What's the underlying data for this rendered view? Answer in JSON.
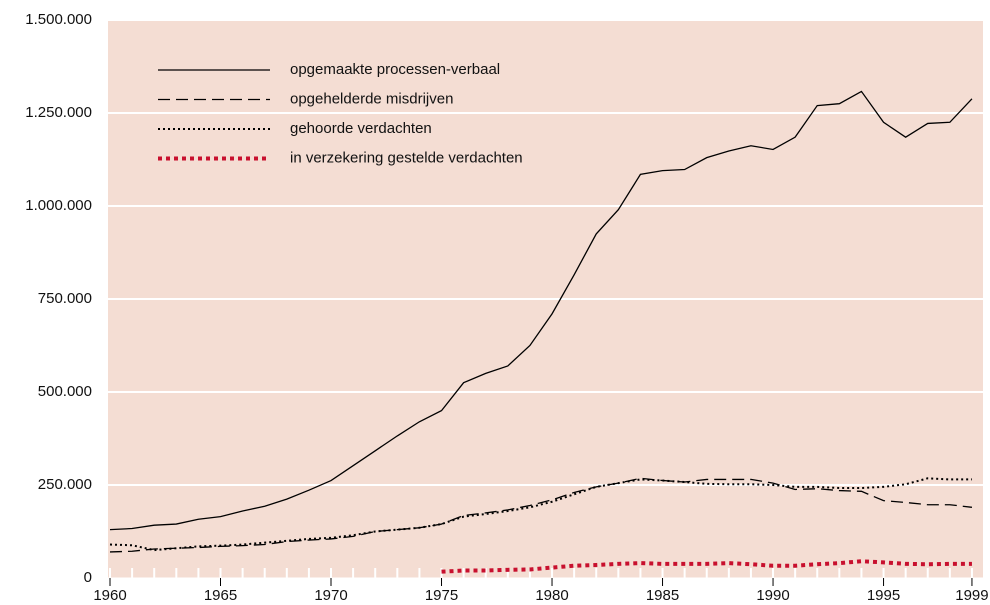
{
  "chart_data": {
    "type": "line",
    "x": [
      1960,
      1961,
      1962,
      1963,
      1964,
      1965,
      1966,
      1967,
      1968,
      1969,
      1970,
      1971,
      1972,
      1973,
      1974,
      1975,
      1976,
      1977,
      1978,
      1979,
      1980,
      1981,
      1982,
      1983,
      1984,
      1985,
      1986,
      1987,
      1988,
      1989,
      1990,
      1991,
      1992,
      1993,
      1994,
      1995,
      1996,
      1997,
      1998,
      1999
    ],
    "series": [
      {
        "name": "opgemaakte processen-verbaal",
        "color": "#000000",
        "dash": "solid",
        "values": [
          130000,
          133000,
          142000,
          145000,
          158000,
          165000,
          180000,
          193000,
          212000,
          236000,
          262000,
          302000,
          342000,
          382000,
          420000,
          450000,
          525000,
          550000,
          570000,
          625000,
          710000,
          815000,
          925000,
          990000,
          1085000,
          1095000,
          1098000,
          1130000,
          1148000,
          1162000,
          1152000,
          1185000,
          1270000,
          1275000,
          1308000,
          1225000,
          1185000,
          1222000,
          1225000,
          1288000
        ]
      },
      {
        "name": "opgehelderde misdrijven",
        "color": "#000000",
        "dash": "dashed",
        "values": [
          70000,
          72000,
          78000,
          80000,
          82000,
          85000,
          87000,
          90000,
          98000,
          102000,
          105000,
          112000,
          125000,
          130000,
          135000,
          145000,
          168000,
          175000,
          183000,
          195000,
          210000,
          230000,
          245000,
          255000,
          268000,
          262000,
          258000,
          265000,
          265000,
          265000,
          255000,
          238000,
          240000,
          235000,
          233000,
          208000,
          203000,
          197000,
          197000,
          190000
        ]
      },
      {
        "name": "gehoorde verdachten",
        "color": "#000000",
        "dash": "dotted",
        "values": [
          90000,
          88000,
          75000,
          80000,
          85000,
          87000,
          90000,
          95000,
          100000,
          105000,
          108000,
          115000,
          125000,
          130000,
          135000,
          145000,
          165000,
          172000,
          180000,
          190000,
          205000,
          225000,
          245000,
          255000,
          265000,
          262000,
          258000,
          253000,
          252000,
          252000,
          250000,
          245000,
          245000,
          242000,
          242000,
          245000,
          252000,
          268000,
          265000,
          265000
        ]
      },
      {
        "name": "in verzekering gestelde verdachten",
        "color": "#c8102e",
        "dash": "bold-dotted",
        "values": [
          null,
          null,
          null,
          null,
          null,
          null,
          null,
          null,
          null,
          null,
          null,
          null,
          null,
          null,
          null,
          17000,
          20000,
          20000,
          22000,
          23000,
          28000,
          33000,
          35000,
          38000,
          40000,
          38000,
          38000,
          38000,
          40000,
          37000,
          33000,
          33000,
          37000,
          40000,
          45000,
          42000,
          38000,
          37000,
          38000,
          38000
        ]
      }
    ],
    "xlim": [
      1960,
      1999.5
    ],
    "xticks": [
      1960,
      1965,
      1970,
      1975,
      1980,
      1985,
      1990,
      1995,
      1999
    ],
    "ylim": [
      0,
      1500000
    ],
    "yticks": [
      0,
      {
        "value": 250000,
        "label": "250.000"
      },
      {
        "value": 500000,
        "label": "500.000"
      },
      {
        "value": 750000,
        "label": "750.000"
      },
      {
        "value": 1000000,
        "label": "1.000.000"
      },
      {
        "value": 1250000,
        "label": "1.250.000"
      },
      {
        "value": 1500000,
        "label": "1.500.000"
      }
    ],
    "grid": true,
    "legend": "top-left",
    "background": "#f4ddd3"
  }
}
